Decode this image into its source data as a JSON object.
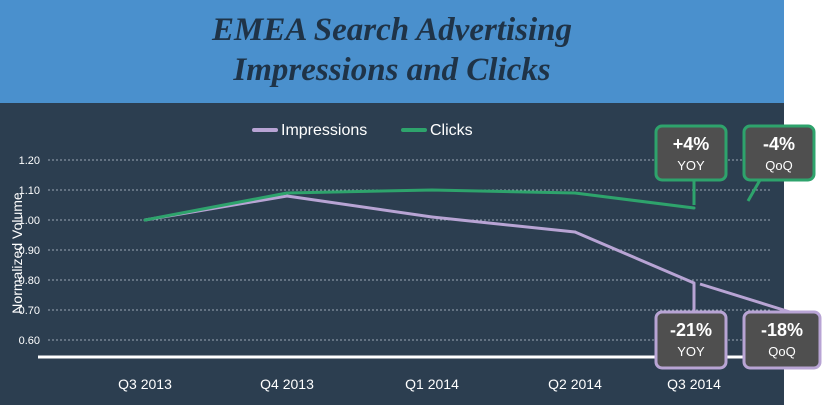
{
  "chart_data": {
    "type": "line",
    "title": "EMEA Search Advertising Impressions and Clicks",
    "title_line1": "EMEA Search Advertising",
    "title_line2": "Impressions and Clicks",
    "ylabel": "Normalized Volume",
    "xlabel": "",
    "categories": [
      "Q3 2013",
      "Q4 2013",
      "Q1 2014",
      "Q2 2014",
      "Q3 2014"
    ],
    "yticks": [
      "1.20",
      "1.10",
      "1.00",
      "0.90",
      "0.80",
      "0.70",
      "0.60"
    ],
    "ylim": [
      0.55,
      1.2
    ],
    "grid": true,
    "legend": "top",
    "series": [
      {
        "name": "Impressions",
        "color": "#b8a4d4",
        "values": [
          1.0,
          1.08,
          1.01,
          0.96,
          0.79
        ]
      },
      {
        "name": "Clicks",
        "color": "#2ea36c",
        "values": [
          1.0,
          1.09,
          1.1,
          1.09,
          1.04
        ]
      }
    ],
    "callouts": [
      {
        "series": "Clicks",
        "value": "+4%",
        "label": "YOY",
        "color": "#2ea36c"
      },
      {
        "series": "Clicks",
        "value": "-4%",
        "label": "QoQ",
        "color": "#2ea36c"
      },
      {
        "series": "Impressions",
        "value": "-21%",
        "label": "YOY",
        "color": "#b8a4d4"
      },
      {
        "series": "Impressions",
        "value": "-18%",
        "label": "QoQ",
        "color": "#b8a4d4"
      }
    ]
  }
}
